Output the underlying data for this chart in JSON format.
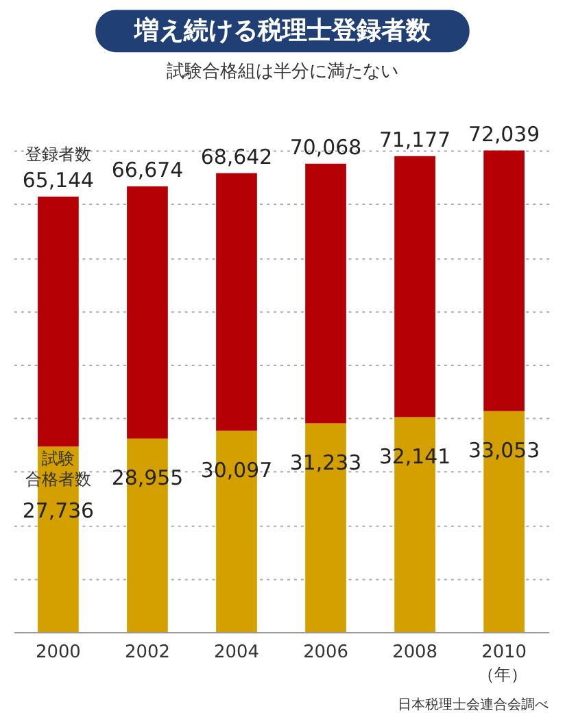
{
  "chart_data": {
    "type": "bar",
    "title": "増え続ける税理士登録者数",
    "subtitle": "試験合格組は半分に満たない",
    "categories": [
      "2000",
      "2002",
      "2004",
      "2006",
      "2008",
      "2010"
    ],
    "xlabel": "（年）",
    "stacked": true,
    "series": [
      {
        "name": "試験合格者数",
        "color": "#d4a000",
        "values": [
          27736,
          28955,
          30097,
          31233,
          32141,
          33053
        ],
        "value_labels": [
          "27,736",
          "28,955",
          "30,097",
          "31,233",
          "32,141",
          "33,053"
        ]
      },
      {
        "color": "#b50005",
        "values": [
          37408,
          37719,
          38545,
          38835,
          39036,
          38986
        ]
      }
    ],
    "totals": [
      "65,144",
      "66,674",
      "68,642",
      "70,068",
      "71,177",
      "72,039"
    ],
    "annotations": [
      {
        "text": "登録者数",
        "x": "2000",
        "y": 65144
      },
      "日本税理士会連合会調べ"
    ],
    "yticks": [
      {
        "value": 8000,
        "label": null
      },
      {
        "value": 16000,
        "label": null
      },
      {
        "value": 24000,
        "label": null
      },
      {
        "value": 32000,
        "label": null
      },
      {
        "value": 40000,
        "label": null
      },
      {
        "value": 48000,
        "label": null
      },
      {
        "value": 56000,
        "label": null
      },
      {
        "value": 64000,
        "label": null
      },
      {
        "value": 72000,
        "label": null
      }
    ],
    "grid": "y"
  }
}
